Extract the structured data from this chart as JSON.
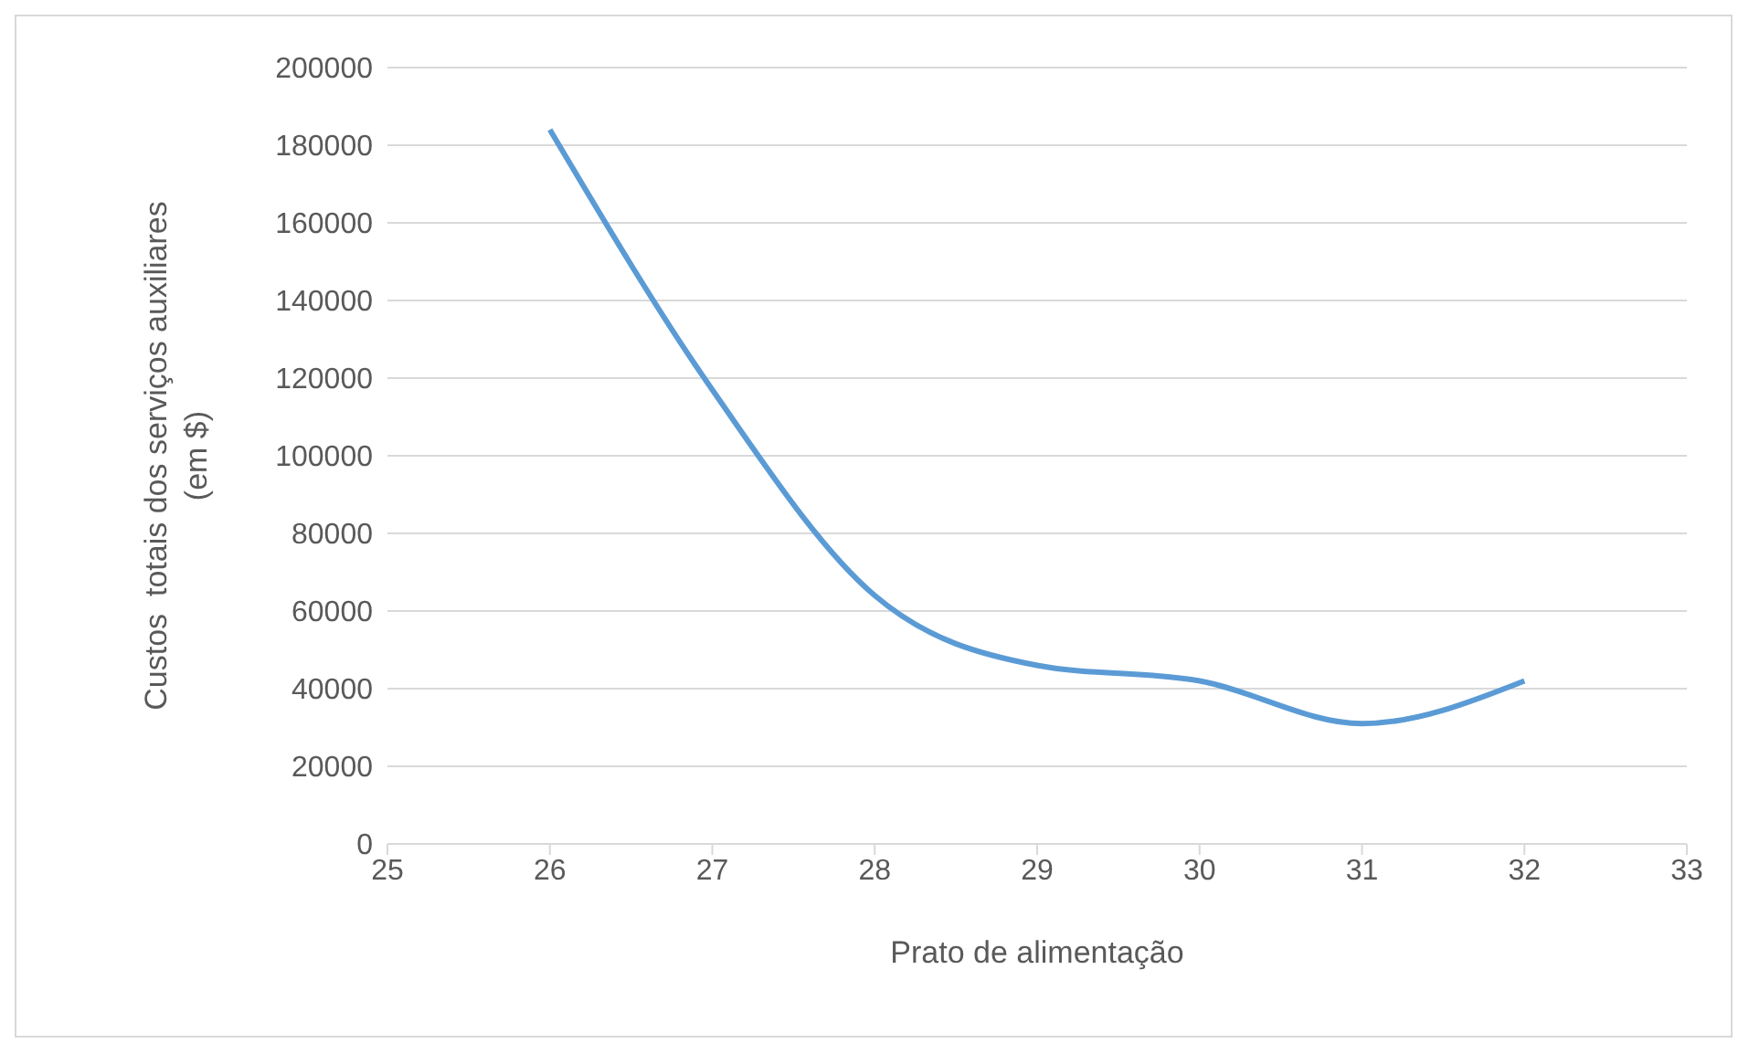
{
  "chart_data": {
    "type": "line",
    "xlabel": "Prato de alimentação",
    "ylabel": "Custos  totais dos serviços auxiliares\n(em $)",
    "x": [
      26,
      27,
      28,
      29,
      30,
      31,
      32
    ],
    "series": [
      {
        "color": "#5b9bd5",
        "values": [
          184000,
          117000,
          64000,
          46000,
          42000,
          31000,
          42000
        ]
      }
    ],
    "xlim": [
      25,
      33
    ],
    "xticks": [
      25,
      26,
      27,
      28,
      29,
      30,
      31,
      32,
      33
    ],
    "ylim": [
      0,
      200000
    ],
    "yticks": [
      0,
      20000,
      40000,
      60000,
      80000,
      100000,
      120000,
      140000,
      160000,
      180000,
      200000
    ],
    "grid": "y",
    "legend": false,
    "marker": "none",
    "line_style": "solid"
  }
}
